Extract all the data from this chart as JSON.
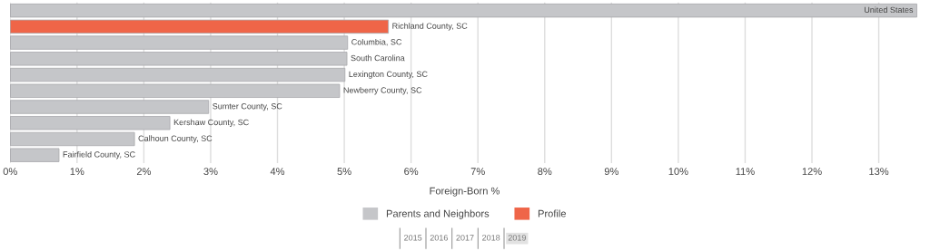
{
  "chart_data": {
    "type": "bar",
    "orientation": "horizontal",
    "xlabel": "Foreign-Born %",
    "categories": [
      "United States",
      "Richland County, SC",
      "Columbia, SC",
      "South Carolina",
      "Lexington County, SC",
      "Newberry County, SC",
      "Sumter County, SC",
      "Kershaw County, SC",
      "Calhoun County, SC",
      "Fairfield County, SC"
    ],
    "series": [
      {
        "name": "Parents and Neighbors",
        "color": "#c5c6c9",
        "values": [
          13.57,
          null,
          5.05,
          5.04,
          5.01,
          4.93,
          2.97,
          2.39,
          1.86,
          0.73
        ]
      },
      {
        "name": "Profile",
        "color": "#ef6548",
        "values": [
          null,
          5.66,
          null,
          null,
          null,
          null,
          null,
          null,
          null,
          null
        ]
      }
    ],
    "xlim": [
      0,
      13.6
    ],
    "xticks": [
      {
        "value": 0,
        "label": "0%"
      },
      {
        "value": 1,
        "label": "1%"
      },
      {
        "value": 2,
        "label": "2%"
      },
      {
        "value": 3,
        "label": "3%"
      },
      {
        "value": 4,
        "label": "4%"
      },
      {
        "value": 5,
        "label": "5%"
      },
      {
        "value": 6,
        "label": "6%"
      },
      {
        "value": 7,
        "label": "7%"
      },
      {
        "value": 8,
        "label": "8%"
      },
      {
        "value": 9,
        "label": "9%"
      },
      {
        "value": 10,
        "label": "10%"
      },
      {
        "value": 11,
        "label": "11%"
      },
      {
        "value": 12,
        "label": "12%"
      },
      {
        "value": 13,
        "label": "13%"
      }
    ],
    "grid": "x",
    "tick_labels": "x",
    "legend": "bottom",
    "annotations": [
      "2015",
      "2016",
      "2017",
      "2018",
      "2019"
    ]
  }
}
